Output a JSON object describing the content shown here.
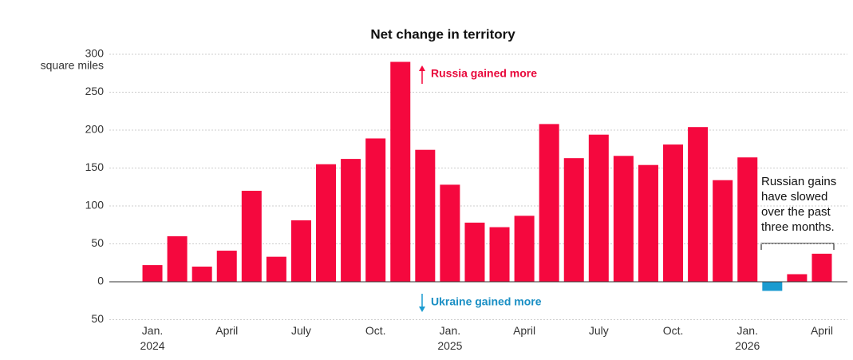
{
  "chart_data": {
    "type": "bar",
    "title": "Net change in territory",
    "y_unit": "square miles",
    "categories": [
      "Jan.\n2024",
      null,
      null,
      "April",
      null,
      null,
      "July",
      null,
      null,
      "Oct.",
      null,
      null,
      "Jan.\n2025",
      null,
      null,
      "April",
      null,
      null,
      "July",
      null,
      null,
      "Oct.",
      null,
      null,
      "Jan.\n2026",
      null,
      null,
      "April"
    ],
    "values": [
      22,
      60,
      20,
      41,
      120,
      33,
      81,
      155,
      162,
      189,
      290,
      174,
      128,
      78,
      72,
      87,
      208,
      163,
      194,
      166,
      154,
      181,
      204,
      134,
      164,
      -12,
      10,
      37
    ],
    "color": "#f5083e",
    "negative_color": "#1a9bd0",
    "ylim": [
      -50,
      300
    ],
    "yticks": [
      {
        "value": -50,
        "label": "50"
      },
      0,
      50,
      100,
      150,
      200,
      250,
      300
    ],
    "grid": true,
    "annotations": {
      "up": "Russia gained more",
      "down": "Ukraine gained more",
      "note": "Russian gains have slowed over the past three months."
    }
  }
}
